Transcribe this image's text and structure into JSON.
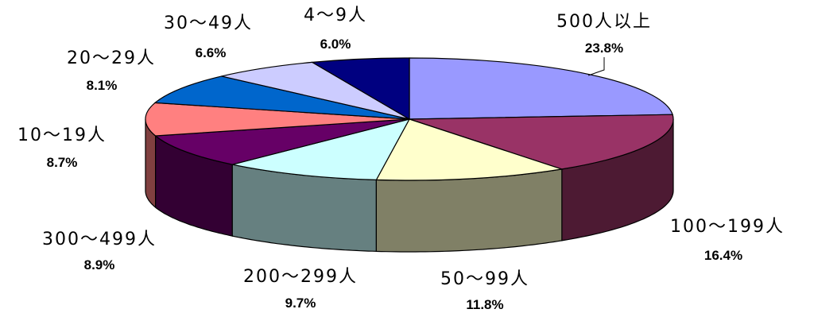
{
  "chart_data": {
    "type": "pie",
    "title": "",
    "slices": [
      {
        "label": "500人以上",
        "value": 23.8,
        "value_label": "23.8%",
        "color": "#9999ff",
        "side_color": "#5f5f9f"
      },
      {
        "label": "100～199人",
        "value": 16.4,
        "value_label": "16.4%",
        "color": "#993366",
        "side_color": "#4d1a33"
      },
      {
        "label": "50～99人",
        "value": 11.8,
        "value_label": "11.8%",
        "color": "#ffffcc",
        "side_color": "#808066"
      },
      {
        "label": "200～299人",
        "value": 9.7,
        "value_label": "9.7%",
        "color": "#ccffff",
        "side_color": "#668080"
      },
      {
        "label": "300～499人",
        "value": 8.9,
        "value_label": "8.9%",
        "color": "#660066",
        "side_color": "#330033"
      },
      {
        "label": "10～19人",
        "value": 8.7,
        "value_label": "8.7%",
        "color": "#ff8080",
        "side_color": "#804040"
      },
      {
        "label": "20～29人",
        "value": 8.1,
        "value_label": "8.1%",
        "color": "#0066cc",
        "side_color": "#003366"
      },
      {
        "label": "30～49人",
        "value": 6.6,
        "value_label": "6.6%",
        "color": "#ccccff",
        "side_color": "#666680"
      },
      {
        "label": "4～9人",
        "value": 6.0,
        "value_label": "6.0%",
        "color": "#000080",
        "side_color": "#000040"
      }
    ],
    "start": "12 o'clock",
    "direction": "clockwise",
    "legend": "none",
    "data_labels": "category and percent"
  }
}
